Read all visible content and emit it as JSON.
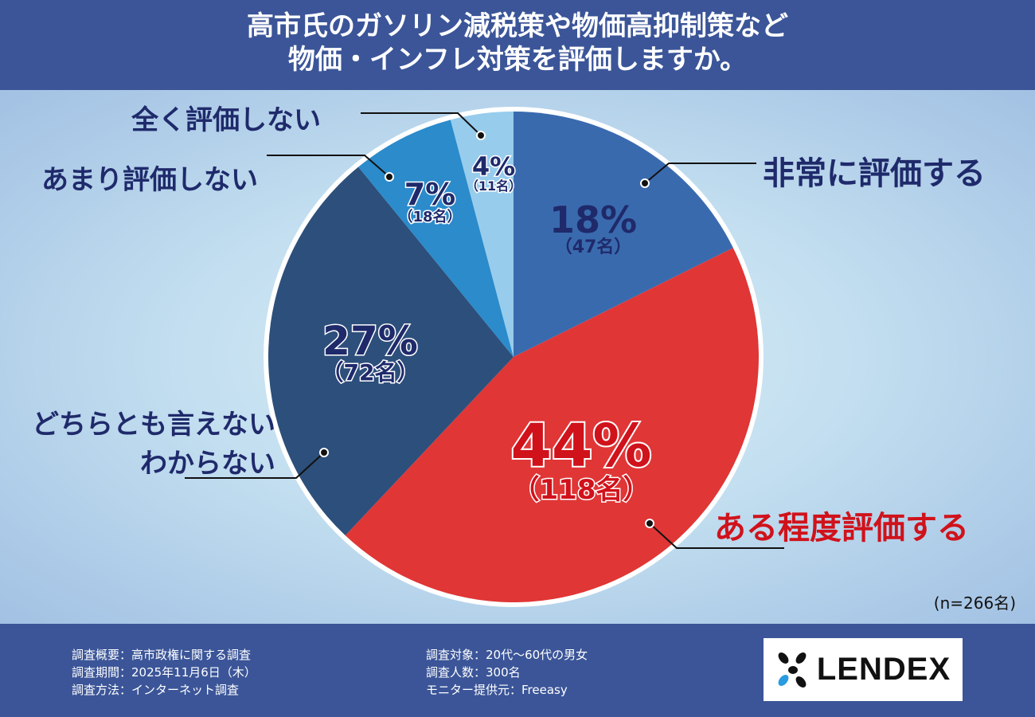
{
  "header": {
    "title_line1": "高市氏のガソリン減税策や物価高抑制策など",
    "title_line2": "物価・インフレ対策を評価しますか。"
  },
  "chart_data": {
    "type": "pie",
    "title": "高市氏のガソリン減税策や物価高抑制策など物価・インフレ対策を評価しますか。",
    "n_label": "(n=266名)",
    "slices": [
      {
        "label": "非常に評価する",
        "percent_label": "18%",
        "count_label": "（47名）",
        "count": 47,
        "color": "#3a6aae"
      },
      {
        "label": "ある程度評価する",
        "percent_label": "44%",
        "count_label": "（118名）",
        "count": 118,
        "color": "#e03636"
      },
      {
        "label": "どちらとも言えない",
        "label2": "わからない",
        "percent_label": "27%",
        "count_label": "（72名）",
        "count": 72,
        "color": "#2d4f7b"
      },
      {
        "label": "あまり評価しない",
        "percent_label": "7%",
        "count_label": "（18名）",
        "count": 18,
        "color": "#2b8bcb"
      },
      {
        "label": "全く評価しない",
        "percent_label": "4%",
        "count_label": "（11名）",
        "count": 11,
        "color": "#97ccec"
      }
    ]
  },
  "footer": {
    "col1": [
      "調査概要：高市政権に関する調査",
      "調査期間：2025年11月6日（木）",
      "調査方法：インターネット調査"
    ],
    "col2": [
      "調査対象：20代～60代の男女",
      "調査人数：300名",
      "モニター提供元：Freeasy"
    ],
    "logo": "LENDEX"
  }
}
